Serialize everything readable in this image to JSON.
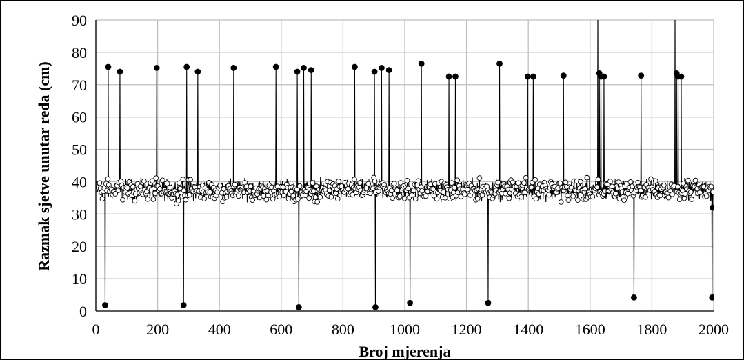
{
  "chart_data": {
    "type": "line",
    "title": "",
    "xlabel": "Broj mjerenja",
    "ylabel": "Razmak sjetve unutar  reda (cm)",
    "xlim": [
      0,
      2000
    ],
    "ylim": [
      0,
      90
    ],
    "x_ticks": [
      "0",
      "200",
      "400",
      "600",
      "800",
      "1000",
      "1200",
      "1400",
      "1600",
      "1800",
      "2000"
    ],
    "y_ticks": [
      "0",
      "10",
      "20",
      "30",
      "40",
      "50",
      "60",
      "70",
      "80",
      "90"
    ],
    "grid": true,
    "legend": "none",
    "marker": "circle",
    "series_color": "#000000",
    "baseline_range": [
      33,
      42
    ],
    "n_points": 2000,
    "outliers": [
      {
        "x": 30,
        "y": 1.8
      },
      {
        "x": 40,
        "y": 75.5
      },
      {
        "x": 78,
        "y": 74
      },
      {
        "x": 197,
        "y": 75.2
      },
      {
        "x": 284,
        "y": 1.8
      },
      {
        "x": 294,
        "y": 75.5
      },
      {
        "x": 330,
        "y": 74
      },
      {
        "x": 446,
        "y": 75.2
      },
      {
        "x": 583,
        "y": 75.5
      },
      {
        "x": 652,
        "y": 74
      },
      {
        "x": 657,
        "y": 1.2
      },
      {
        "x": 673,
        "y": 75.2
      },
      {
        "x": 697,
        "y": 74.5
      },
      {
        "x": 838,
        "y": 75.5
      },
      {
        "x": 902,
        "y": 74
      },
      {
        "x": 905,
        "y": 1.2
      },
      {
        "x": 925,
        "y": 75.2
      },
      {
        "x": 949,
        "y": 74.5
      },
      {
        "x": 1017,
        "y": 2.5
      },
      {
        "x": 1054,
        "y": 76.5
      },
      {
        "x": 1143,
        "y": 72.5
      },
      {
        "x": 1164,
        "y": 72.5
      },
      {
        "x": 1270,
        "y": 2.5
      },
      {
        "x": 1307,
        "y": 76.5
      },
      {
        "x": 1398,
        "y": 72.5
      },
      {
        "x": 1416,
        "y": 72.5
      },
      {
        "x": 1514,
        "y": 72.8
      },
      {
        "x": 1625,
        "y": 95
      },
      {
        "x": 1630,
        "y": 73.5
      },
      {
        "x": 1635,
        "y": 72.5
      },
      {
        "x": 1645,
        "y": 72.5
      },
      {
        "x": 1742,
        "y": 4.2
      },
      {
        "x": 1765,
        "y": 72.8
      },
      {
        "x": 1875,
        "y": 95
      },
      {
        "x": 1880,
        "y": 73.5
      },
      {
        "x": 1885,
        "y": 72.5
      },
      {
        "x": 1895,
        "y": 72.5
      },
      {
        "x": 1995,
        "y": 4.2
      },
      {
        "x": 1997,
        "y": 32
      }
    ]
  }
}
